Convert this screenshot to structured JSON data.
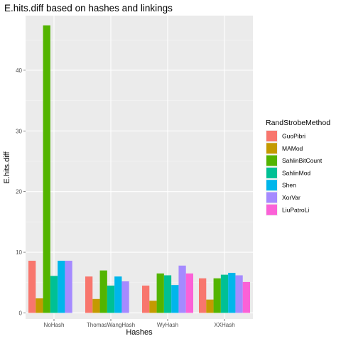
{
  "chart_data": {
    "type": "bar",
    "title": "E.hits.diff based on hashes and linkings",
    "xlabel": "Hashes",
    "ylabel": "E.hits.diff",
    "categories": [
      "NoHash",
      "ThomasWangHash",
      "WyHash",
      "XXHash"
    ],
    "ylim": [
      -1,
      49
    ],
    "yticks": [
      0,
      10,
      20,
      30,
      40
    ],
    "grid": true,
    "legend": {
      "title": "RandStrobeMethod",
      "position": "right"
    },
    "series": [
      {
        "name": "GuoPibri",
        "color": "#F8766D",
        "values": [
          8.6,
          6.0,
          4.5,
          5.7
        ]
      },
      {
        "name": "MAMod",
        "color": "#C49A00",
        "values": [
          2.4,
          2.3,
          2.0,
          2.2
        ]
      },
      {
        "name": "SahlinBitCount",
        "color": "#53B400",
        "values": [
          47.4,
          7.0,
          6.5,
          5.7
        ]
      },
      {
        "name": "SahlinMod",
        "color": "#00C094",
        "values": [
          6.1,
          4.5,
          6.2,
          6.3
        ]
      },
      {
        "name": "Shen",
        "color": "#00B6EB",
        "values": [
          8.6,
          6.0,
          4.6,
          6.6
        ]
      },
      {
        "name": "XorVar",
        "color": "#A58AFF",
        "values": [
          8.6,
          5.2,
          7.8,
          6.2
        ]
      },
      {
        "name": "LiuPatroLi",
        "color": "#FB61D7",
        "values": [
          null,
          null,
          6.5,
          5.1
        ]
      }
    ]
  }
}
